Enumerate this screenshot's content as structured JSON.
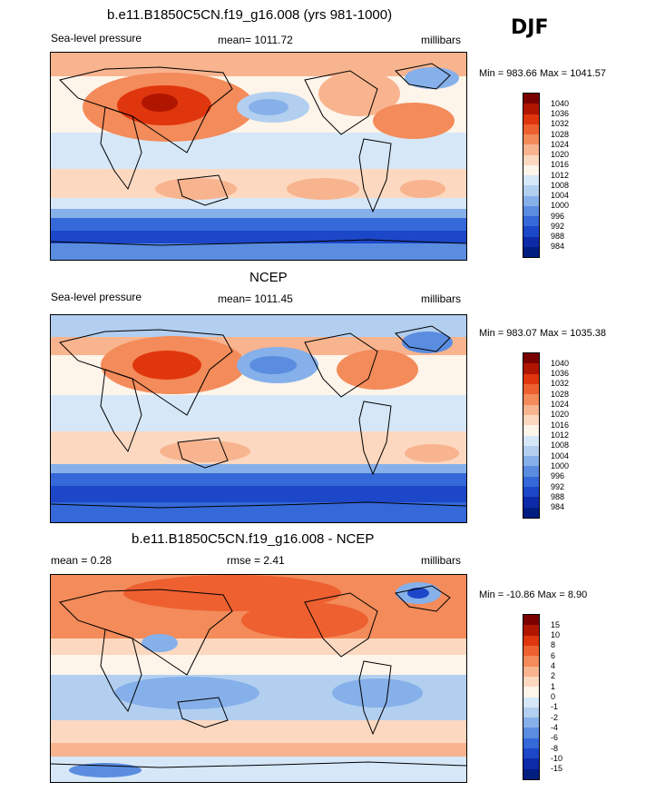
{
  "season": "DJF",
  "panels": [
    {
      "title": "b.e11.B1850C5CN.f19_g16.008 (yrs 981-1000)",
      "left": "Sea-level pressure",
      "center": "mean= 1011.72",
      "units": "millibars",
      "stats": "Min = 983.66 Max = 1041.57",
      "colorbar": {
        "labels": [
          "1040",
          "1036",
          "1032",
          "1028",
          "1024",
          "1020",
          "1016",
          "1012",
          "1008",
          "1004",
          "1000",
          "996",
          "992",
          "988",
          "984"
        ],
        "colors": [
          "#7a0000",
          "#b01500",
          "#e0360d",
          "#ee6030",
          "#f38b5a",
          "#f8b48f",
          "#fcd8c0",
          "#fdf4ea",
          "#d6e7f8",
          "#b2cff0",
          "#86b0ea",
          "#5a8de0",
          "#3568d8",
          "#1c47c8",
          "#0d2aa8",
          "#001d80"
        ]
      }
    },
    {
      "title": "NCEP",
      "left": "Sea-level pressure",
      "center": "mean= 1011.45",
      "units": "millibars",
      "stats": "Min = 983.07 Max = 1035.38",
      "colorbar": {
        "labels": [
          "1040",
          "1036",
          "1032",
          "1028",
          "1024",
          "1020",
          "1016",
          "1012",
          "1008",
          "1004",
          "1000",
          "996",
          "992",
          "988",
          "984"
        ],
        "colors": [
          "#7a0000",
          "#b01500",
          "#e0360d",
          "#ee6030",
          "#f38b5a",
          "#f8b48f",
          "#fcd8c0",
          "#fdf4ea",
          "#d6e7f8",
          "#b2cff0",
          "#86b0ea",
          "#5a8de0",
          "#3568d8",
          "#1c47c8",
          "#0d2aa8",
          "#001d80"
        ]
      }
    },
    {
      "title": "b.e11.B1850C5CN.f19_g16.008 - NCEP",
      "left": "mean =   0.28",
      "center": "rmse =   2.41",
      "units": "millibars",
      "stats": "Min = -10.86 Max =   8.90",
      "colorbar": {
        "labels": [
          "15",
          "10",
          "8",
          "6",
          "4",
          "2",
          "1",
          "0",
          "-1",
          "-2",
          "-4",
          "-6",
          "-8",
          "-10",
          "-15"
        ],
        "colors": [
          "#7a0000",
          "#b01500",
          "#e0360d",
          "#ee6030",
          "#f38b5a",
          "#f8b48f",
          "#fcd8c0",
          "#fdf4ea",
          "#d6e7f8",
          "#b2cff0",
          "#86b0ea",
          "#5a8de0",
          "#3568d8",
          "#1c47c8",
          "#0d2aa8",
          "#001d80"
        ]
      }
    }
  ]
}
